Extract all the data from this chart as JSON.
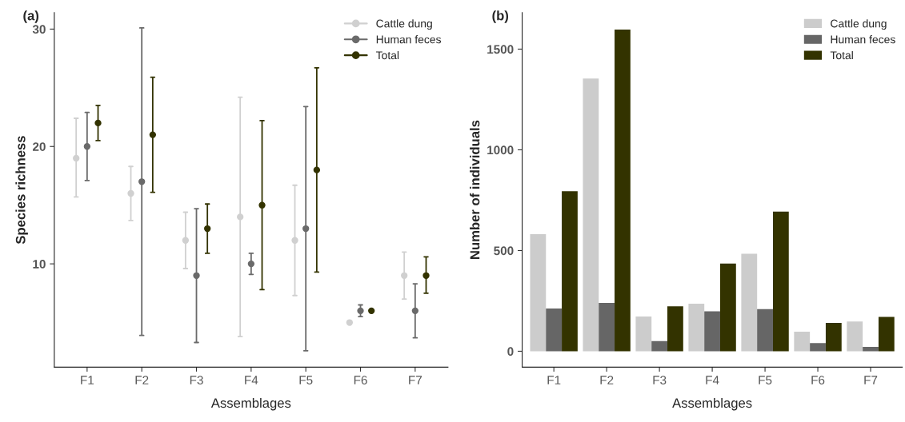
{
  "chart_data": [
    {
      "type": "scatter",
      "title": "(a)",
      "xlabel": "Assemblages",
      "ylabel": "Species richness",
      "categories": [
        "F1",
        "F2",
        "F3",
        "F4",
        "F5",
        "F6",
        "F7"
      ],
      "series": [
        {
          "name": "Cattle dung",
          "color": "#d0d0d0",
          "values": [
            19,
            16,
            12,
            14,
            12,
            5,
            9
          ],
          "errors": [
            [
              15.7,
              22.4
            ],
            [
              13.7,
              18.3
            ],
            [
              9.6,
              14.4
            ],
            [
              3.8,
              24.2
            ],
            [
              7.3,
              16.7
            ],
            null,
            [
              7.0,
              11.0
            ]
          ]
        },
        {
          "name": "Human feces",
          "color": "#6a6a6a",
          "values": [
            20,
            17,
            9,
            10,
            13,
            6,
            6
          ],
          "errors": [
            [
              17.1,
              22.9
            ],
            [
              3.9,
              30.1
            ],
            [
              3.3,
              14.7
            ],
            [
              9.1,
              10.9
            ],
            [
              2.6,
              23.4
            ],
            [
              5.5,
              6.5
            ],
            [
              3.7,
              8.3
            ]
          ]
        },
        {
          "name": "Total",
          "color": "#333300",
          "values": [
            22,
            21,
            13,
            15,
            18,
            6,
            9
          ],
          "errors": [
            [
              20.5,
              23.5
            ],
            [
              16.1,
              25.9
            ],
            [
              10.9,
              15.1
            ],
            [
              7.8,
              22.2
            ],
            [
              9.3,
              26.7
            ],
            null,
            [
              7.5,
              10.6
            ]
          ]
        }
      ],
      "ylim": [
        1.2,
        31.4
      ],
      "yticks": [
        10,
        20,
        30
      ],
      "marker": "circle",
      "legend": "top right",
      "grid": false
    },
    {
      "type": "bar",
      "title": "(b)",
      "xlabel": "Assemblages",
      "ylabel": "Number of individuals",
      "categories": [
        "F1",
        "F2",
        "F3",
        "F4",
        "F5",
        "F6",
        "F7"
      ],
      "series": [
        {
          "name": "Cattle dung",
          "color": "#cccccc",
          "values": [
            581,
            1354,
            172,
            236,
            484,
            97,
            148
          ]
        },
        {
          "name": "Human feces",
          "color": "#666666",
          "values": [
            212,
            240,
            50,
            198,
            209,
            40,
            22
          ]
        },
        {
          "name": "Total",
          "color": "#333300",
          "values": [
            794,
            1597,
            223,
            435,
            693,
            141,
            170
          ]
        }
      ],
      "ylim": [
        -79,
        1681
      ],
      "yticks": [
        0,
        500,
        1000,
        1500
      ],
      "legend": "top right",
      "grid": false
    }
  ]
}
